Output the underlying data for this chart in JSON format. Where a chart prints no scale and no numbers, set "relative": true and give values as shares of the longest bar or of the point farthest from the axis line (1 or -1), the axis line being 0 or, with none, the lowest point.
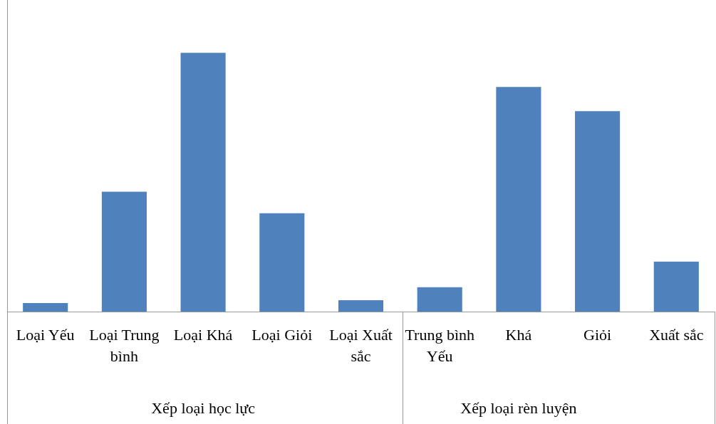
{
  "chart_data": {
    "type": "bar",
    "relative": true,
    "categories": [
      "Loại Yếu",
      "Loại Trung bình",
      "Loại Khá",
      "Loại Giỏi",
      "Loại Xuất sắc",
      "Trung bình Yếu",
      "Khá",
      "Giỏi",
      "Xuất sắc"
    ],
    "values": [
      0.033,
      0.463,
      1,
      0.38,
      0.044,
      0.094,
      0.868,
      0.774,
      0.193
    ],
    "color": "#4f81bd",
    "annotations": [
      "Xếp loại học lực",
      "Xếp loại rèn luyện"
    ]
  }
}
